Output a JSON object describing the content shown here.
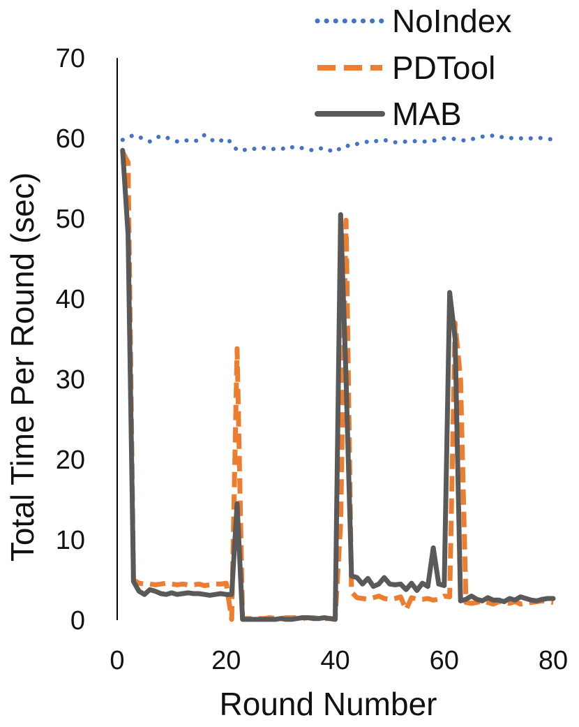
{
  "chart_data": {
    "type": "line",
    "title": "",
    "xlabel": "Round Number",
    "ylabel": "Total Time Per Round (sec)",
    "xlim": [
      0,
      80
    ],
    "ylim": [
      0,
      70
    ],
    "x_ticks": [
      "0",
      "20",
      "40",
      "60",
      "80"
    ],
    "y_ticks": [
      "0",
      "10",
      "20",
      "30",
      "40",
      "50",
      "60",
      "70"
    ],
    "legend_position": "top-right",
    "grid": false,
    "series": [
      {
        "name": "NoIndex",
        "style": "dotted",
        "color": "#4472c4",
        "x": [
          1,
          2,
          3,
          4,
          5,
          6,
          7,
          8,
          9,
          10,
          11,
          12,
          13,
          14,
          15,
          16,
          17,
          18,
          19,
          20,
          21,
          22,
          23,
          24,
          25,
          26,
          27,
          28,
          29,
          30,
          31,
          32,
          33,
          34,
          35,
          36,
          37,
          38,
          39,
          40,
          41,
          42,
          43,
          44,
          45,
          46,
          47,
          48,
          49,
          50,
          51,
          52,
          53,
          54,
          55,
          56,
          57,
          58,
          59,
          60,
          61,
          62,
          63,
          64,
          65,
          66,
          67,
          68,
          69,
          70,
          71,
          72,
          73,
          74,
          75,
          76,
          77,
          78,
          79,
          80
        ],
        "values": [
          59.8,
          60.1,
          60.4,
          60.2,
          59.8,
          59.6,
          60.0,
          60.3,
          60.1,
          59.9,
          59.6,
          59.8,
          59.7,
          59.6,
          59.8,
          60.4,
          60.0,
          59.5,
          59.7,
          60.0,
          59.4,
          58.5,
          58.6,
          58.5,
          58.7,
          58.6,
          58.8,
          58.6,
          58.7,
          58.8,
          58.6,
          58.9,
          58.7,
          58.8,
          58.6,
          58.5,
          58.7,
          58.8,
          58.5,
          58.3,
          58.8,
          59.1,
          59.0,
          59.3,
          59.4,
          59.6,
          59.5,
          59.8,
          59.8,
          59.6,
          59.5,
          59.5,
          59.6,
          59.7,
          59.6,
          59.6,
          59.6,
          59.7,
          59.8,
          60.0,
          60.0,
          59.9,
          59.8,
          59.7,
          59.9,
          60.0,
          60.2,
          60.4,
          60.3,
          60.1,
          60.2,
          60.0,
          60.1,
          60.0,
          59.9,
          60.0,
          60.1,
          60.0,
          59.9,
          59.9
        ]
      },
      {
        "name": "PDTool",
        "style": "dashed",
        "color": "#ed7d31",
        "x": [
          1,
          2,
          3,
          4,
          5,
          6,
          7,
          8,
          9,
          10,
          11,
          12,
          13,
          14,
          15,
          16,
          17,
          18,
          19,
          20,
          21,
          22,
          23,
          24,
          25,
          26,
          27,
          28,
          29,
          30,
          31,
          32,
          33,
          34,
          35,
          36,
          37,
          38,
          39,
          40,
          41,
          42,
          43,
          44,
          45,
          46,
          47,
          48,
          49,
          50,
          51,
          52,
          53,
          54,
          55,
          56,
          57,
          58,
          59,
          60,
          61,
          62,
          63,
          64,
          65,
          66,
          67,
          68,
          69,
          70,
          71,
          72,
          73,
          74,
          75,
          76,
          77,
          78,
          79,
          80
        ],
        "values": [
          58.3,
          57.0,
          5.0,
          4.6,
          4.5,
          4.5,
          4.4,
          4.5,
          4.6,
          4.5,
          4.4,
          4.5,
          4.4,
          4.4,
          4.5,
          4.3,
          4.4,
          4.5,
          4.5,
          4.6,
          0.1,
          33.8,
          0.2,
          0.2,
          0.2,
          0.2,
          0.2,
          0.3,
          0.2,
          0.2,
          0.3,
          0.3,
          0.3,
          0.2,
          0.3,
          0.3,
          0.2,
          0.2,
          0.2,
          0.2,
          12.0,
          49.8,
          3.5,
          2.8,
          2.7,
          2.6,
          2.8,
          3.0,
          2.7,
          2.6,
          2.7,
          2.9,
          1.3,
          2.8,
          2.6,
          2.6,
          2.7,
          2.5,
          2.6,
          3.0,
          2.9,
          37.0,
          30.0,
          2.2,
          2.1,
          2.2,
          2.4,
          2.2,
          2.0,
          2.3,
          2.2,
          2.1,
          2.3,
          2.0,
          2.1,
          2.2,
          2.3,
          2.4,
          2.3,
          2.2
        ]
      },
      {
        "name": "MAB",
        "style": "solid",
        "color": "#595959",
        "x": [
          1,
          2,
          3,
          4,
          5,
          6,
          7,
          8,
          9,
          10,
          11,
          12,
          13,
          14,
          15,
          16,
          17,
          18,
          19,
          20,
          21,
          22,
          23,
          24,
          25,
          26,
          27,
          28,
          29,
          30,
          31,
          32,
          33,
          34,
          35,
          36,
          37,
          38,
          39,
          40,
          41,
          42,
          43,
          44,
          45,
          46,
          47,
          48,
          49,
          50,
          51,
          52,
          53,
          54,
          55,
          56,
          57,
          58,
          59,
          60,
          61,
          62,
          63,
          64,
          65,
          66,
          67,
          68,
          69,
          70,
          71,
          72,
          73,
          74,
          75,
          76,
          77,
          78,
          79,
          80
        ],
        "values": [
          58.5,
          48.0,
          4.8,
          3.6,
          3.2,
          3.8,
          3.6,
          3.3,
          3.2,
          3.4,
          3.2,
          3.3,
          3.4,
          3.3,
          3.3,
          3.2,
          3.1,
          3.2,
          3.3,
          3.2,
          3.2,
          14.5,
          0.1,
          0.1,
          0.1,
          0.1,
          0.1,
          0.1,
          0.1,
          0.2,
          0.1,
          0.1,
          0.2,
          0.3,
          0.3,
          0.2,
          0.2,
          0.3,
          0.2,
          0.1,
          50.5,
          30.0,
          5.5,
          5.3,
          4.5,
          5.2,
          4.2,
          4.5,
          5.3,
          4.5,
          4.4,
          4.5,
          3.8,
          4.6,
          3.7,
          4.6,
          4.2,
          9.0,
          4.5,
          4.3,
          40.8,
          35.0,
          2.4,
          2.6,
          3.0,
          2.6,
          2.4,
          2.8,
          2.5,
          2.5,
          2.3,
          2.7,
          2.5,
          2.9,
          2.7,
          2.5,
          2.4,
          2.6,
          2.7,
          2.7
        ]
      }
    ]
  }
}
